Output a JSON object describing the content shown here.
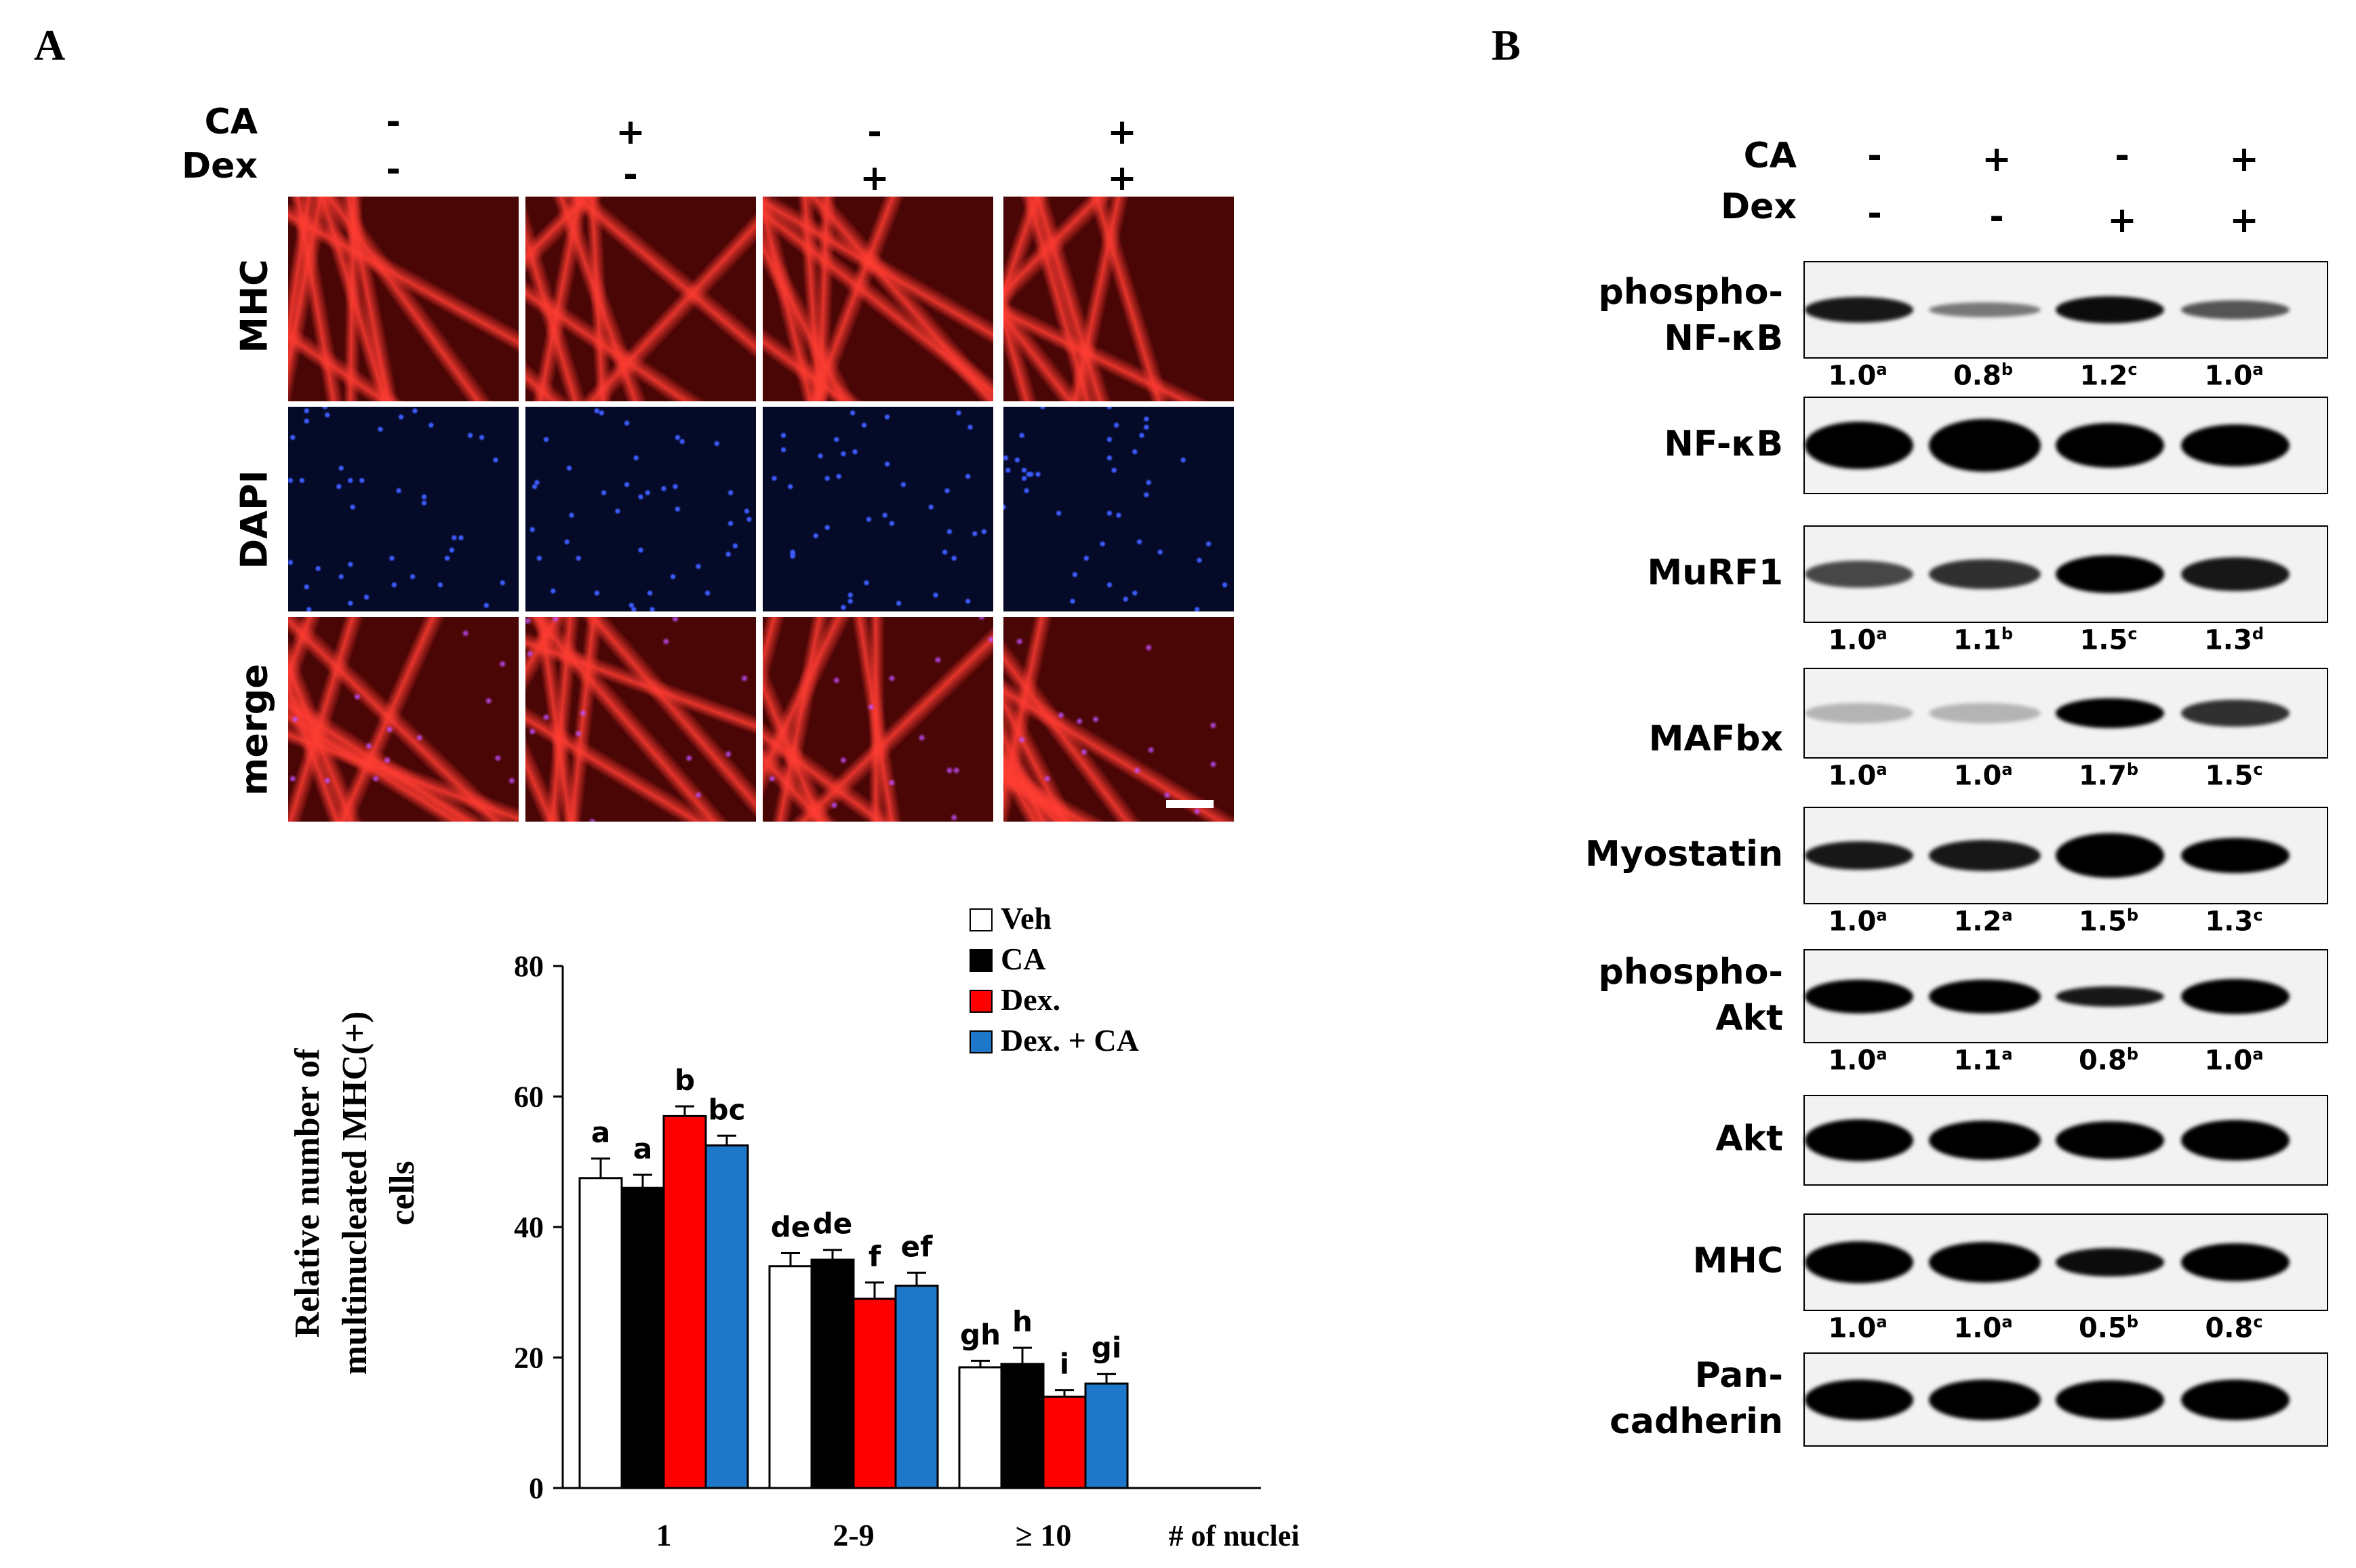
{
  "panels": {
    "a": "A",
    "b": "B"
  },
  "panel_a": {
    "conditions": {
      "ca_label": "CA",
      "dex_label": "Dex",
      "ca_signs": [
        "-",
        "+",
        "-",
        "+"
      ],
      "dex_signs": [
        "-",
        "-",
        "+",
        "+"
      ]
    },
    "rows": [
      "MHC",
      "DAPI",
      "merge"
    ]
  },
  "panel_b": {
    "conditions": {
      "ca_label": "CA",
      "dex_label": "Dex",
      "ca_signs": [
        "-",
        "+",
        "-",
        "+"
      ],
      "dex_signs": [
        "-",
        "-",
        "+",
        "+"
      ]
    },
    "blots": [
      {
        "label": "phospho-NF-κB",
        "label1": "phospho-",
        "label2": "NF-κB",
        "quant": [
          [
            "1.0",
            "a"
          ],
          [
            "0.8",
            "b"
          ],
          [
            "1.2",
            "c"
          ],
          [
            "1.0",
            "a"
          ]
        ]
      },
      {
        "label": "NF-κB"
      },
      {
        "label": "MuRF1",
        "quant": [
          [
            "1.0",
            "a"
          ],
          [
            "1.1",
            "b"
          ],
          [
            "1.5",
            "c"
          ],
          [
            "1.3",
            "d"
          ]
        ]
      },
      {
        "label": "MAFbx",
        "quant": [
          [
            "1.0",
            "a"
          ],
          [
            "1.0",
            "a"
          ],
          [
            "1.7",
            "b"
          ],
          [
            "1.5",
            "c"
          ]
        ]
      },
      {
        "label": "Myostatin",
        "quant": [
          [
            "1.0",
            "a"
          ],
          [
            "1.2",
            "a"
          ],
          [
            "1.5",
            "b"
          ],
          [
            "1.3",
            "c"
          ]
        ]
      },
      {
        "label": "phospho-Akt",
        "label1": "phospho-",
        "label2": "Akt",
        "quant": [
          [
            "1.0",
            "a"
          ],
          [
            "1.1",
            "a"
          ],
          [
            "0.8",
            "b"
          ],
          [
            "1.0",
            "a"
          ]
        ]
      },
      {
        "label": "Akt"
      },
      {
        "label": "MHC",
        "quant": [
          [
            "1.0",
            "a"
          ],
          [
            "1.0",
            "a"
          ],
          [
            "0.5",
            "b"
          ],
          [
            "0.8",
            "c"
          ]
        ]
      },
      {
        "label": "Pan-cadherin",
        "label1": "Pan-",
        "label2": "cadherin"
      }
    ]
  },
  "chart_data": {
    "type": "bar",
    "categories": [
      "1",
      "2-9",
      "≥ 10"
    ],
    "xlabel": "# of nuclei",
    "ylabel_line1": "Relative number of",
    "ylabel_line2": "multinucleated MHC(+)",
    "ylabel_line3": "cells",
    "ylim": [
      0,
      80
    ],
    "yticks": [
      0,
      20,
      40,
      60,
      80
    ],
    "legend_position": "top-right",
    "series": [
      {
        "name": "Veh",
        "color": "#ffffff",
        "values": [
          47.5,
          34,
          18.5
        ],
        "errors": [
          3,
          2,
          1
        ],
        "letters": [
          "a",
          "de",
          "gh"
        ]
      },
      {
        "name": "CA",
        "color": "#000000",
        "values": [
          46,
          35,
          19
        ],
        "errors": [
          2,
          1.5,
          2.5
        ],
        "letters": [
          "a",
          "de",
          "h"
        ]
      },
      {
        "name": "Dex.",
        "color": "#ff0000",
        "values": [
          57,
          29,
          14
        ],
        "errors": [
          1.5,
          2.5,
          1
        ],
        "letters": [
          "b",
          "f",
          "i"
        ]
      },
      {
        "name": "Dex. + CA",
        "color": "#1f77c9",
        "values": [
          52.5,
          31,
          16
        ],
        "errors": [
          1.5,
          2,
          1.5
        ],
        "letters": [
          "bc",
          "ef",
          "gi"
        ]
      }
    ]
  },
  "colors": {
    "mhc_red": "#d9140c",
    "dapi_blue": "#1c2fb8",
    "blot_bg": "#f2f2f2"
  }
}
